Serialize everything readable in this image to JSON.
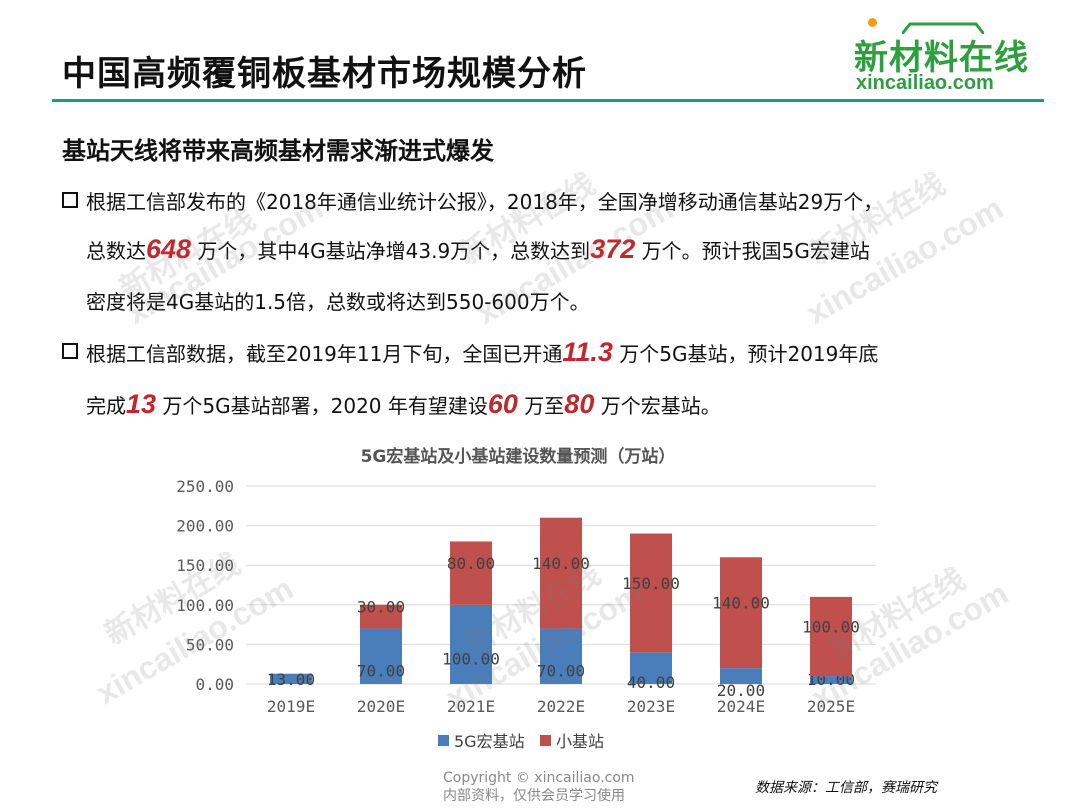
{
  "title": "中国高频覆铜板基材市场规模分析",
  "logo": {
    "cn": "新材料在线",
    "en": "xincailiao.com"
  },
  "subtitle": "基站天线将带来高频基材需求渐进式爆发",
  "bullet1": {
    "l1": "根据工信部发布的《2018年通信业统计公报》，2018年，全国净增移动通信基站29万个，",
    "l2a": "总数达",
    "l2b": "648",
    "l2c": " 万个，其中4G基站净增43.9万个，总数达到",
    "l2d": "372",
    "l2e": " 万个。预计我国5G宏建站",
    "l3": "密度将是4G基站的1.5倍，总数或将达到550-600万个。"
  },
  "bullet2": {
    "l1a": "根据工信部数据，截至2019年11月下旬，全国已开通",
    "l1b": "11.3",
    "l1c": " 万个5G基站，预计2019年底",
    "l2a": "完成",
    "l2b": "13",
    "l2c": " 万个5G基站部署，2020 年有望建设",
    "l2d": "60",
    "l2e": " 万至",
    "l2f": "80",
    "l2g": " 万个宏基站。"
  },
  "chart_data": {
    "type": "bar",
    "stacked": true,
    "title": "5G宏基站及小基站建设数量预测（万站）",
    "categories": [
      "2019E",
      "2020E",
      "2021E",
      "2022E",
      "2023E",
      "2024E",
      "2025E"
    ],
    "series": [
      {
        "name": "5G宏基站",
        "color": "#4a7ebb",
        "values": [
          13,
          70,
          100,
          70,
          40,
          20,
          10
        ]
      },
      {
        "name": "小基站",
        "color": "#c0504d",
        "values": [
          0,
          30,
          80,
          140,
          150,
          140,
          100
        ]
      }
    ],
    "yticks": [
      "0.00",
      "50.00",
      "100.00",
      "150.00",
      "200.00",
      "250.00"
    ],
    "ylim": [
      0,
      250
    ],
    "grid": true,
    "legend": "bottom"
  },
  "watermarks": {
    "cn": "新材料在线",
    "en": "xincailiao.com"
  },
  "copyright": {
    "l1": "Copyright © xincailiao.com",
    "l2": "内部资料，仅供会员学习使用"
  },
  "source": "数据来源：工信部，赛瑞研究"
}
